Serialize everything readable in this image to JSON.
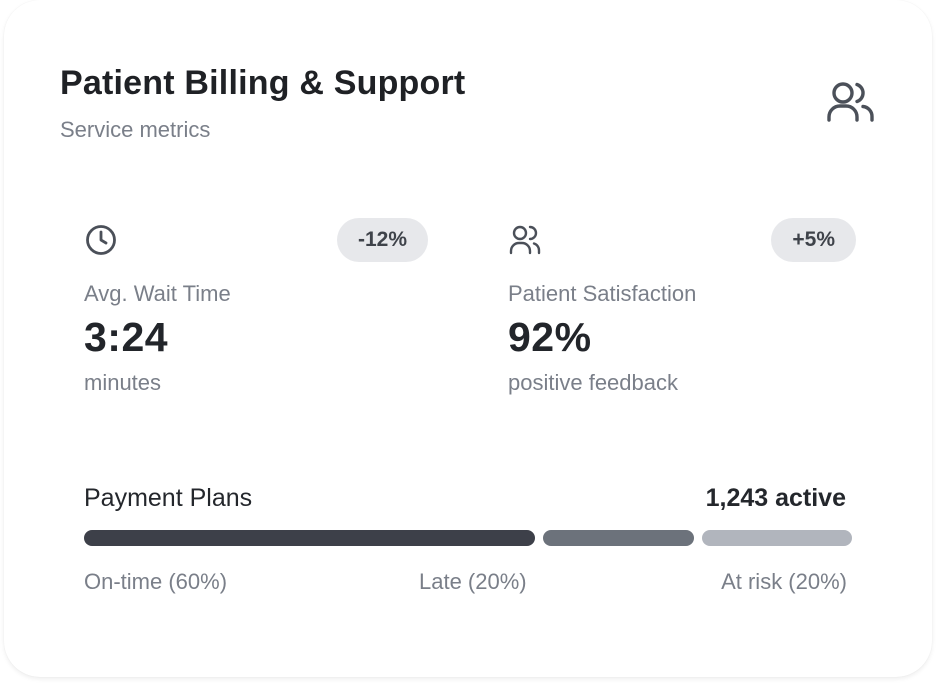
{
  "header": {
    "title": "Patient Billing & Support",
    "subtitle": "Service metrics",
    "icon": "users-icon"
  },
  "metrics": [
    {
      "icon": "clock-icon",
      "change": "-12%",
      "label": "Avg. Wait Time",
      "value": "3:24",
      "unit": "minutes"
    },
    {
      "icon": "users-icon",
      "change": "+5%",
      "label": "Patient Satisfaction",
      "value": "92%",
      "unit": "positive feedback"
    }
  ],
  "payment_plans": {
    "title": "Payment Plans",
    "count": "1,243 active",
    "segments": [
      {
        "label": "On-time (60%)",
        "percent": 60,
        "color": "#3d4049"
      },
      {
        "label": "Late (20%)",
        "percent": 20,
        "color": "#6c727b"
      },
      {
        "label": "At risk (20%)",
        "percent": 20,
        "color": "#b1b5bd"
      }
    ]
  }
}
